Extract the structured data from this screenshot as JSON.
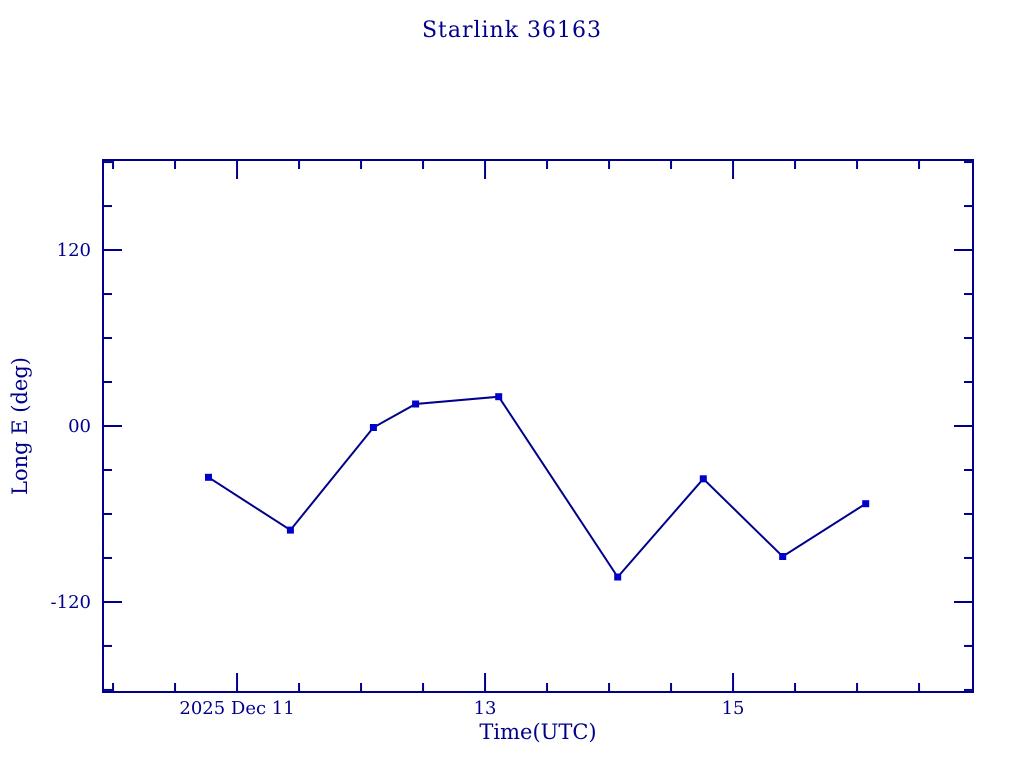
{
  "page": {
    "background": "#ffffff"
  },
  "chart_data": {
    "type": "line",
    "title": "Starlink 36163",
    "xlabel": "Time(UTC)",
    "ylabel": "Long E (deg)",
    "grid": false,
    "legend": "none",
    "marker": "filled-square",
    "x_unit": "days relative to 2025 Dec 11 00:00 UTC",
    "xlim": [
      -1.081,
      5.935
    ],
    "ylim": [
      -181.4,
      181.4
    ],
    "x_major_ticks": [
      {
        "t_days": 0,
        "label": "2025 Dec 11"
      },
      {
        "t_days": 2,
        "label": "13"
      },
      {
        "t_days": 4,
        "label": "15"
      }
    ],
    "x_minor_tick_start": -1.0,
    "x_minor_tick_end": 5.5,
    "x_minor_step": 0.5,
    "y_major_ticks": [
      {
        "value": 120,
        "label": "120"
      },
      {
        "value": 0,
        "label": "00"
      },
      {
        "value": -120,
        "label": "-120"
      }
    ],
    "y_minor_step": 30,
    "points": [
      {
        "t_days": -0.23,
        "utc_est": "2025 Dec 10 18:30",
        "long_e_deg": -35
      },
      {
        "t_days": 0.43,
        "utc_est": "2025 Dec 11 10:20",
        "long_e_deg": -71
      },
      {
        "t_days": 1.1,
        "utc_est": "2025 Dec 12 02:25",
        "long_e_deg": -1
      },
      {
        "t_days": 1.44,
        "utc_est": "2025 Dec 12 10:35",
        "long_e_deg": 15
      },
      {
        "t_days": 2.11,
        "utc_est": "2025 Dec 13 02:40",
        "long_e_deg": 20
      },
      {
        "t_days": 3.07,
        "utc_est": "2025 Dec 14 01:40",
        "long_e_deg": -103
      },
      {
        "t_days": 3.76,
        "utc_est": "2025 Dec 14 18:15",
        "long_e_deg": -36
      },
      {
        "t_days": 4.4,
        "utc_est": "2025 Dec 15 09:40",
        "long_e_deg": -89
      },
      {
        "t_days": 5.07,
        "utc_est": "2025 Dec 16 01:45",
        "long_e_deg": -53
      }
    ],
    "colors": {
      "axis": "#00008b",
      "text": "#00008b",
      "line": "#00008b",
      "marker": "#0000cd",
      "background": "#ffffff"
    }
  }
}
